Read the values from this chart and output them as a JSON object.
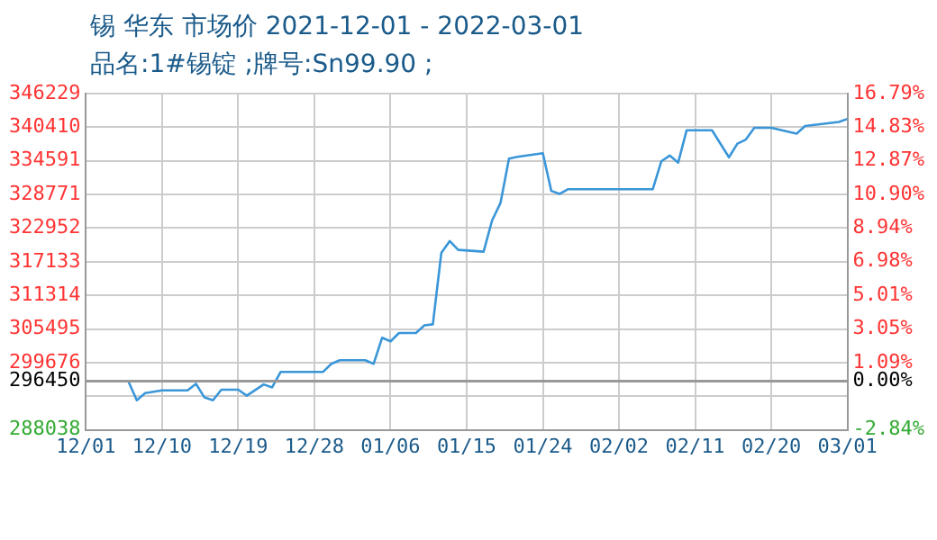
{
  "chart_data": {
    "type": "line",
    "title": "锡 华东 市场价 2021-12-01 - 2022-03-01",
    "subtitle": "品名:1#锡锭 ;牌号:Sn99.90 ;",
    "x": [
      "2021-12-01",
      "2021-12-06",
      "2021-12-07",
      "2021-12-08",
      "2021-12-10",
      "2021-12-13",
      "2021-12-14",
      "2021-12-15",
      "2021-12-16",
      "2021-12-17",
      "2021-12-19",
      "2021-12-20",
      "2021-12-22",
      "2021-12-23",
      "2021-12-24",
      "2021-12-29",
      "2021-12-30",
      "2021-12-31",
      "2022-01-03",
      "2022-01-04",
      "2022-01-05",
      "2022-01-06",
      "2022-01-07",
      "2022-01-09",
      "2022-01-10",
      "2022-01-11",
      "2022-01-12",
      "2022-01-13",
      "2022-01-14",
      "2022-01-17",
      "2022-01-18",
      "2022-01-19",
      "2022-01-20",
      "2022-01-21",
      "2022-01-24",
      "2022-01-25",
      "2022-01-26",
      "2022-01-27",
      "2022-02-06",
      "2022-02-07",
      "2022-02-08",
      "2022-02-09",
      "2022-02-10",
      "2022-02-13",
      "2022-02-15",
      "2022-02-16",
      "2022-02-17",
      "2022-02-18",
      "2022-02-20",
      "2022-02-23",
      "2022-02-24",
      "2022-02-28",
      "2022-03-01"
    ],
    "series": [
      {
        "color": "#3a96d8",
        "values": [
          296450,
          296450,
          293150,
          294400,
          294870,
          294870,
          296000,
          293650,
          293150,
          294990,
          294990,
          293960,
          295900,
          295390,
          298050,
          298050,
          299470,
          300090,
          300090,
          299470,
          303970,
          303350,
          304790,
          304790,
          306110,
          306300,
          318660,
          320710,
          319180,
          318880,
          324270,
          327330,
          334990,
          335300,
          335900,
          329390,
          328870,
          329690,
          329690,
          334500,
          335510,
          334290,
          339890,
          339890,
          335200,
          337560,
          338270,
          340310,
          340310,
          339290,
          340620,
          341330,
          341850
        ]
      }
    ],
    "xlim": [
      "2021-12-01",
      "2022-03-01"
    ],
    "xticks": [
      {
        "value": "2021-12-01",
        "label": "12/01"
      },
      {
        "value": "2021-12-10",
        "label": "12/10"
      },
      {
        "value": "2021-12-19",
        "label": "12/19"
      },
      {
        "value": "2021-12-28",
        "label": "12/28"
      },
      {
        "value": "2022-01-06",
        "label": "01/06"
      },
      {
        "value": "2022-01-15",
        "label": "01/15"
      },
      {
        "value": "2022-01-24",
        "label": "01/24"
      },
      {
        "value": "2022-02-02",
        "label": "02/02"
      },
      {
        "value": "2022-02-11",
        "label": "02/11"
      },
      {
        "value": "2022-02-20",
        "label": "02/20"
      },
      {
        "value": "2022-03-01",
        "label": "03/01"
      }
    ],
    "ylim": [
      288038,
      346229
    ],
    "yticks": [
      288038,
      {
        "value": 293857,
        "label": null
      },
      296450,
      299676,
      305495,
      311314,
      317133,
      322952,
      328771,
      334591,
      340410,
      346229
    ],
    "y2lim": [
      -2.84,
      16.79
    ],
    "y2ticks": [
      {
        "value": -2.84,
        "label": "-2.84%"
      },
      {
        "value": -0.87,
        "label": null
      },
      {
        "value": 0,
        "label": "0.00%"
      },
      {
        "value": 1.09,
        "label": "1.09%"
      },
      {
        "value": 3.05,
        "label": "3.05%"
      },
      {
        "value": 5.01,
        "label": "5.01%"
      },
      {
        "value": 6.98,
        "label": "6.98%"
      },
      {
        "value": 8.94,
        "label": "8.94%"
      },
      {
        "value": 10.9,
        "label": "10.90%"
      },
      {
        "value": 12.87,
        "label": "12.87%"
      },
      {
        "value": 14.83,
        "label": "14.83%"
      },
      {
        "value": 16.79,
        "label": "16.79%"
      }
    ],
    "ref_lines": [
      {
        "axis": "y",
        "value": 296450,
        "color": "#999999"
      }
    ],
    "grid": true,
    "legend": false,
    "marker": "none",
    "line_style": "solid"
  }
}
